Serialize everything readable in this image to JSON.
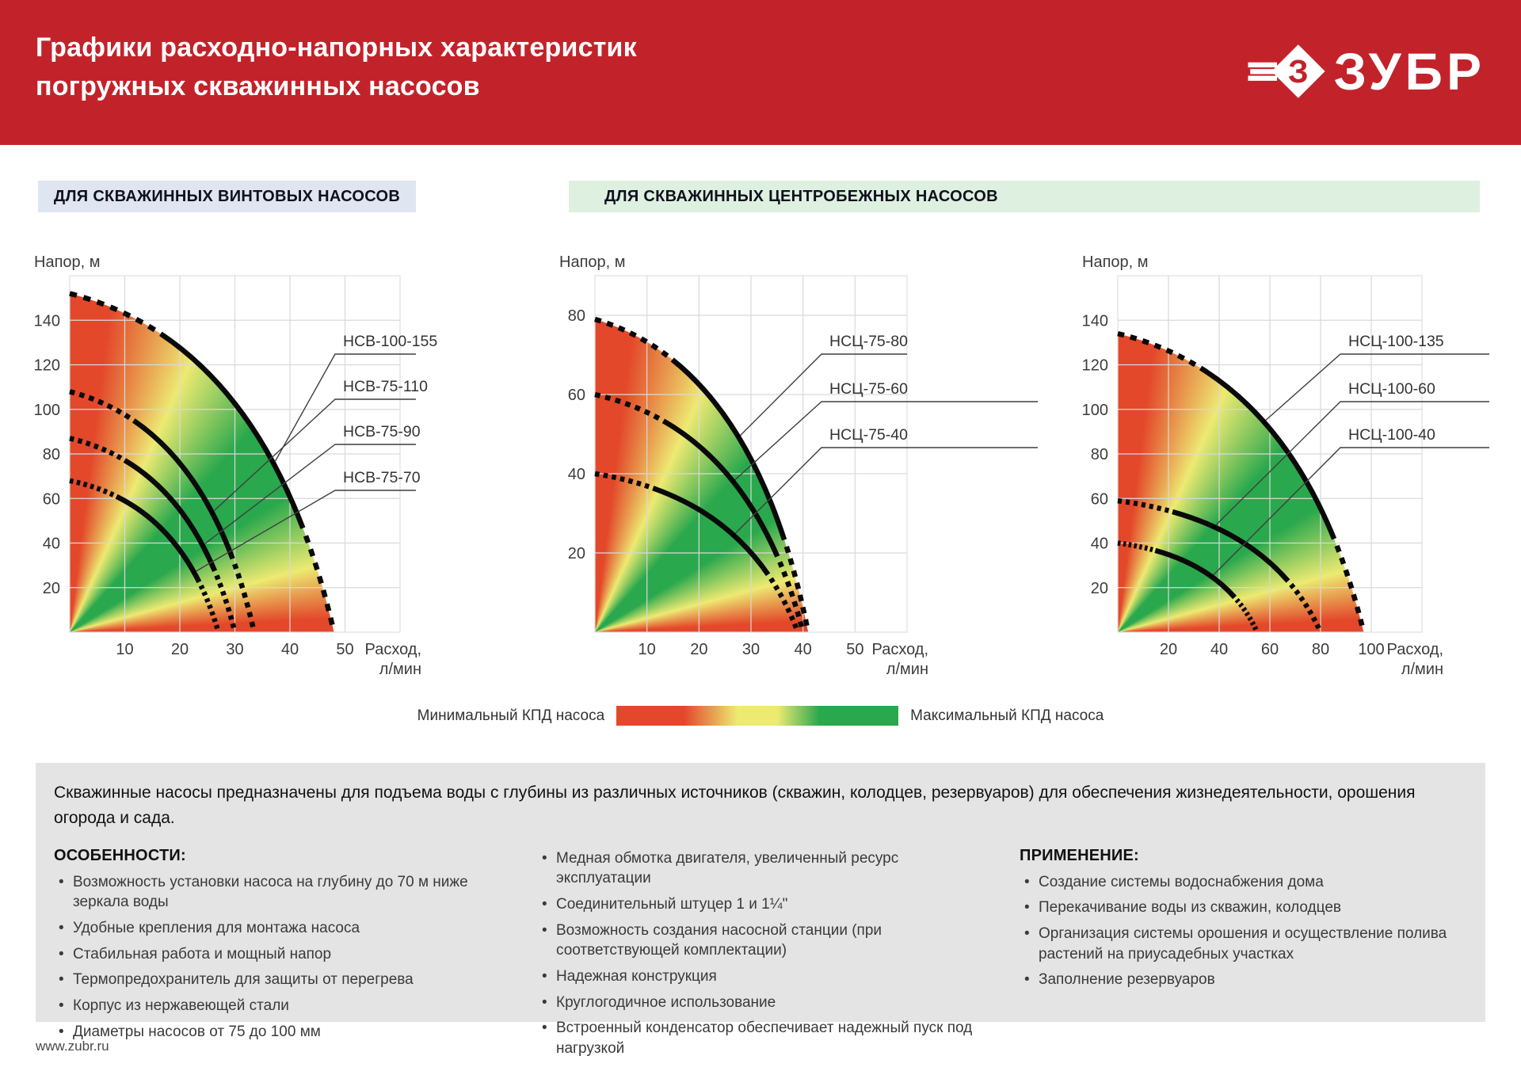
{
  "header": {
    "title_line1": "Графики расходно-напорных характеристик",
    "title_line2": "погружных скважинных насосов",
    "brand": "ЗУБР",
    "brand_letter": "З"
  },
  "sections": [
    {
      "label": "ДЛЯ СКВАЖИННЫХ ВИНТОВЫХ НАСОСОВ"
    },
    {
      "label": "ДЛЯ СКВАЖИННЫХ ЦЕНТРОБЕЖНЫХ НАСОСОВ"
    }
  ],
  "chart_data": [
    {
      "type": "line",
      "title": "Расходно-напорные характеристики винтовых насосов",
      "ylabel": "Напор, м",
      "xlabel": "Расход, л/мин",
      "xlabel_lines": [
        "Расход,",
        "л/мин"
      ],
      "xlim": [
        0,
        60
      ],
      "ylim": [
        0,
        160
      ],
      "xticks": [
        10,
        20,
        30,
        40,
        50
      ],
      "yticks": [
        20,
        40,
        60,
        80,
        100,
        120,
        140
      ],
      "grid": true,
      "series": [
        {
          "name": "НСВ-100-155",
          "head_at_zero_flow_m": 152,
          "max_flow_l_min": 48
        },
        {
          "name": "НСВ-75-110",
          "head_at_zero_flow_m": 108,
          "max_flow_l_min": 33.5
        },
        {
          "name": "НСВ-75-90",
          "head_at_zero_flow_m": 87,
          "max_flow_l_min": 30
        },
        {
          "name": "НСВ-75-70",
          "head_at_zero_flow_m": 68,
          "max_flow_l_min": 27
        }
      ],
      "curve_shape": "concave head-flow curve from (0, head) to (max_flow, 0), dotted at both ends"
    },
    {
      "type": "line",
      "title": "Расходно-напорные характеристики центробежных насосов 75 мм",
      "ylabel": "Напор, м",
      "xlabel": "Расход, л/мин",
      "xlabel_lines": [
        "Расход,",
        "л/мин"
      ],
      "xlim": [
        0,
        60
      ],
      "ylim": [
        0,
        90
      ],
      "xticks": [
        10,
        20,
        30,
        40,
        50
      ],
      "yticks": [
        20,
        40,
        60,
        80
      ],
      "grid": true,
      "series": [
        {
          "name": "НСЦ-75-80",
          "head_at_zero_flow_m": 79,
          "max_flow_l_min": 41
        },
        {
          "name": "НСЦ-75-60",
          "head_at_zero_flow_m": 60,
          "max_flow_l_min": 40
        },
        {
          "name": "НСЦ-75-40",
          "head_at_zero_flow_m": 40,
          "max_flow_l_min": 39
        }
      ],
      "curve_shape": "concave head-flow curve from (0, head) to (max_flow, 0), dotted at both ends"
    },
    {
      "type": "line",
      "title": "Расходно-напорные характеристики центробежных насосов 100 мм",
      "ylabel": "Напор, м",
      "xlabel": "Расход, л/мин",
      "xlabel_lines": [
        "Расход,",
        "л/мин"
      ],
      "xlim": [
        0,
        120
      ],
      "ylim": [
        0,
        160
      ],
      "xticks": [
        20,
        40,
        60,
        80,
        100
      ],
      "yticks": [
        20,
        40,
        60,
        80,
        100,
        120,
        140
      ],
      "grid": true,
      "series": [
        {
          "name": "НСЦ-100-135",
          "head_at_zero_flow_m": 134,
          "max_flow_l_min": 97
        },
        {
          "name": "НСЦ-100-60",
          "head_at_zero_flow_m": 59,
          "max_flow_l_min": 80
        },
        {
          "name": "НСЦ-100-40",
          "head_at_zero_flow_m": 40,
          "max_flow_l_min": 55
        }
      ],
      "curve_shape": "concave head-flow curve from (0, head) to (max_flow, 0), dotted at both ends"
    }
  ],
  "legend": {
    "min_label": "Минимальный КПД насоса",
    "max_label": "Максимальный КПД насоса"
  },
  "colors": {
    "header_red": "#c2232a",
    "efficiency_red": "#e3482a",
    "efficiency_yellow": "#edea72",
    "efficiency_green": "#2aa84d",
    "section1_bg": "#dfe5f1",
    "section2_bg": "#def0df",
    "infobox_bg": "#e4e4e4"
  },
  "info": {
    "intro": "Скважинные насосы предназначены для подъема воды с глубины из различных источников (скважин, колодцев, резервуаров) для обеспечения жизнедеятельности, орошения огорода и сада.",
    "features_title": "ОСОБЕННОСТИ:",
    "features": [
      "Возможность установки насоса на глубину до 70 м ниже зеркала воды",
      "Удобные крепления для монтажа насоса",
      "Стабильная работа и мощный напор",
      "Термопредохранитель для защиты от перегрева",
      "Корпус из нержавеющей стали",
      "Диаметры насосов от 75 до 100 мм"
    ],
    "features2": [
      "Медная обмотка двигателя, увеличенный ресурс эксплуатации",
      "Соединительный штуцер 1 и 1¼\"",
      "Возможность создания насосной станции (при соответствующей комплектации)",
      "Надежная конструкция",
      "Круглогодичное использование",
      "Встроенный конденсатор обеспечивает надежный пуск под нагрузкой"
    ],
    "applications_title": "ПРИМЕНЕНИЕ:",
    "applications": [
      "Создание системы водоснабжения дома",
      "Перекачивание воды из скважин, колодцев",
      "Организация системы орошения и осуществление полива растений на приусадебных участках",
      "Заполнение резервуаров"
    ]
  },
  "footer": {
    "url": "www.zubr.ru"
  }
}
